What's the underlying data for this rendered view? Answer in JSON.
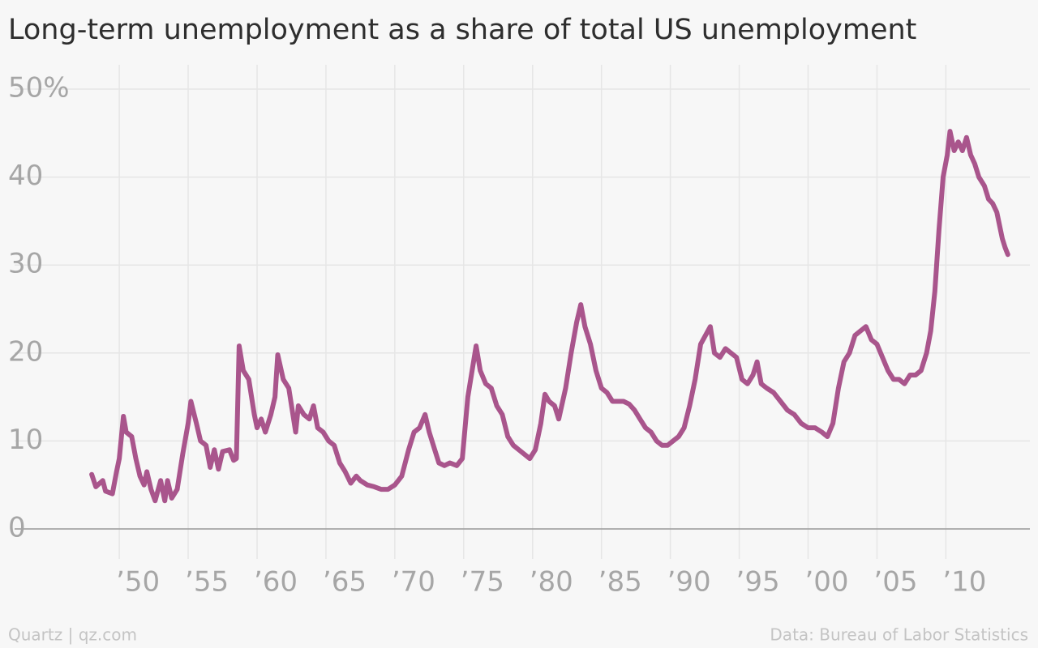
{
  "chart_data": {
    "type": "line",
    "title": "Long-term unemployment as a share of total US unemployment",
    "source_left": "Quartz | qz.com",
    "source_right": "Data: Bureau of Labor Statistics",
    "color": "#a9558c",
    "grid": true,
    "xlim": [
      1942.4,
      2016.1
    ],
    "ylim": [
      0,
      50
    ],
    "xticks": [
      {
        "value": 1950,
        "label": "’50"
      },
      {
        "value": 1955,
        "label": "’55"
      },
      {
        "value": 1960,
        "label": "’60"
      },
      {
        "value": 1965,
        "label": "’65"
      },
      {
        "value": 1970,
        "label": "’70"
      },
      {
        "value": 1975,
        "label": "’75"
      },
      {
        "value": 1980,
        "label": "’80"
      },
      {
        "value": 1985,
        "label": "’85"
      },
      {
        "value": 1990,
        "label": "’90"
      },
      {
        "value": 1995,
        "label": "’95"
      },
      {
        "value": 2000,
        "label": "’00"
      },
      {
        "value": 2005,
        "label": "’05"
      },
      {
        "value": 2010,
        "label": "’10"
      }
    ],
    "yticks": [
      0,
      10,
      20,
      30,
      40,
      {
        "value": 50,
        "label": "50%"
      }
    ],
    "x": [
      1948.0,
      1948.3,
      1948.8,
      1949.0,
      1949.5,
      1949.8,
      1950.0,
      1950.3,
      1950.5,
      1950.9,
      1951.2,
      1951.5,
      1951.8,
      1952.0,
      1952.3,
      1952.6,
      1953.0,
      1953.3,
      1953.5,
      1953.8,
      1954.2,
      1954.6,
      1955.0,
      1955.2,
      1955.6,
      1955.9,
      1956.3,
      1956.6,
      1956.9,
      1957.2,
      1957.5,
      1958.0,
      1958.3,
      1958.5,
      1958.7,
      1959.0,
      1959.4,
      1959.8,
      1960.0,
      1960.3,
      1960.6,
      1961.0,
      1961.3,
      1961.5,
      1961.9,
      1962.3,
      1962.6,
      1962.8,
      1963.0,
      1963.4,
      1963.8,
      1964.1,
      1964.4,
      1964.8,
      1965.2,
      1965.6,
      1966.0,
      1966.4,
      1966.8,
      1967.2,
      1967.5,
      1968.0,
      1968.5,
      1969.0,
      1969.5,
      1970.0,
      1970.5,
      1971.0,
      1971.4,
      1971.8,
      1972.2,
      1972.5,
      1972.9,
      1973.2,
      1973.6,
      1974.0,
      1974.5,
      1974.9,
      1975.3,
      1975.9,
      1976.2,
      1976.6,
      1977.0,
      1977.4,
      1977.8,
      1978.2,
      1978.6,
      1979.0,
      1979.4,
      1979.8,
      1980.2,
      1980.6,
      1980.9,
      1981.2,
      1981.6,
      1981.9,
      1982.4,
      1982.8,
      1983.2,
      1983.5,
      1983.8,
      1984.2,
      1984.6,
      1985.0,
      1985.4,
      1985.8,
      1986.2,
      1986.6,
      1987.0,
      1987.4,
      1987.8,
      1988.2,
      1988.6,
      1989.0,
      1989.4,
      1989.8,
      1990.2,
      1990.6,
      1991.0,
      1991.4,
      1991.8,
      1992.2,
      1992.9,
      1993.2,
      1993.6,
      1994.0,
      1994.4,
      1994.8,
      1995.2,
      1995.6,
      1996.0,
      1996.3,
      1996.6,
      1997.0,
      1997.5,
      1998.0,
      1998.5,
      1999.0,
      1999.5,
      2000.0,
      2000.5,
      2001.0,
      2001.4,
      2001.8,
      2002.2,
      2002.6,
      2003.0,
      2003.4,
      2003.8,
      2004.2,
      2004.6,
      2005.0,
      2005.4,
      2005.8,
      2006.2,
      2006.6,
      2007.0,
      2007.4,
      2007.8,
      2008.2,
      2008.6,
      2008.9,
      2009.2,
      2009.5,
      2009.8,
      2010.1,
      2010.3,
      2010.6,
      2010.9,
      2011.2,
      2011.5,
      2011.8,
      2012.1,
      2012.4,
      2012.8,
      2013.1,
      2013.4,
      2013.7,
      2014.1,
      2014.3,
      2014.5
    ],
    "values": [
      6.2,
      4.8,
      5.5,
      4.3,
      4.0,
      6.5,
      8.0,
      12.8,
      11.0,
      10.5,
      8.0,
      6.0,
      5.0,
      6.5,
      4.5,
      3.2,
      5.5,
      3.2,
      5.5,
      3.5,
      4.5,
      8.5,
      12.0,
      14.5,
      12.0,
      10.0,
      9.5,
      7.0,
      9.0,
      6.8,
      8.8,
      9.0,
      7.8,
      8.0,
      20.8,
      18.0,
      17.0,
      13.0,
      11.5,
      12.5,
      11.0,
      13.0,
      15.0,
      19.8,
      17.0,
      16.0,
      13.0,
      11.0,
      14.0,
      13.0,
      12.5,
      14.0,
      11.5,
      11.0,
      10.0,
      9.5,
      7.5,
      6.5,
      5.2,
      6.0,
      5.5,
      5.0,
      4.8,
      4.5,
      4.5,
      5.0,
      6.0,
      9.0,
      11.0,
      11.5,
      13.0,
      11.0,
      9.0,
      7.5,
      7.2,
      7.5,
      7.2,
      8.0,
      15.0,
      20.8,
      18.0,
      16.5,
      16.0,
      14.0,
      13.0,
      10.5,
      9.5,
      9.0,
      8.5,
      8.0,
      9.0,
      12.0,
      15.3,
      14.5,
      14.0,
      12.5,
      16.0,
      20.0,
      23.5,
      25.5,
      23.0,
      21.0,
      18.0,
      16.0,
      15.5,
      14.5,
      14.5,
      14.5,
      14.2,
      13.5,
      12.5,
      11.5,
      11.0,
      10.0,
      9.5,
      9.5,
      10.0,
      10.5,
      11.5,
      14.0,
      17.0,
      21.0,
      23.0,
      20.0,
      19.5,
      20.5,
      20.0,
      19.5,
      17.0,
      16.5,
      17.5,
      19.0,
      16.5,
      16.0,
      15.5,
      14.5,
      13.5,
      13.0,
      12.0,
      11.5,
      11.5,
      11.0,
      10.5,
      12.0,
      16.0,
      19.0,
      20.0,
      22.0,
      22.5,
      23.0,
      21.5,
      21.0,
      19.5,
      18.0,
      17.0,
      17.0,
      16.5,
      17.5,
      17.5,
      18.0,
      20.0,
      22.5,
      27.0,
      34.0,
      40.0,
      42.5,
      45.2,
      43.0,
      44.0,
      43.0,
      44.5,
      42.5,
      41.5,
      40.0,
      39.0,
      37.5,
      37.0,
      36.0,
      33.0,
      32.0,
      31.2
    ]
  }
}
